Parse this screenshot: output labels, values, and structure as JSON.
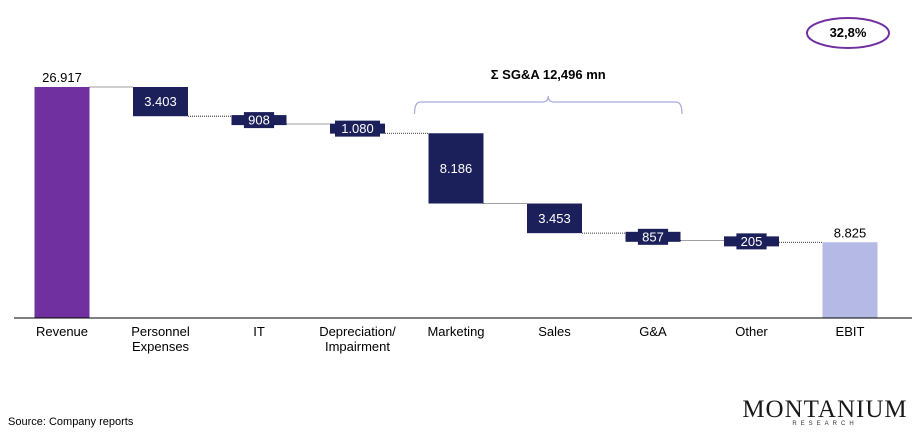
{
  "chart_data": {
    "type": "waterfall",
    "categories": [
      "Revenue",
      "Personnel\nExpenses",
      "IT",
      "Depreciation/\nImpairment",
      "Marketing",
      "Sales",
      "G&A",
      "Other",
      "EBIT"
    ],
    "value_labels": [
      "26.917",
      "3.403",
      "908",
      "1.080",
      "8.186",
      "3.453",
      "857",
      "205",
      "8.825"
    ],
    "values": [
      26917,
      -3403,
      -908,
      -1080,
      -8186,
      -3453,
      -857,
      -205,
      8825
    ],
    "kinds": [
      "total",
      "delta",
      "delta",
      "delta",
      "delta",
      "delta",
      "delta",
      "delta",
      "total"
    ],
    "ylim": [
      0,
      26917
    ],
    "bracket": {
      "label": "Σ SG&A 12,496 mn",
      "from_category": "Marketing",
      "to_category": "Other"
    },
    "callout": "32,8%",
    "colors": {
      "revenue": "#7030A0",
      "decrease": "#1B1F5A",
      "ebit": "#B4B9E6",
      "bracket": "#A9A9DD",
      "callout": "#7030A0"
    }
  },
  "source": "Source: Company reports",
  "logo": {
    "name": "MONTANIUM",
    "sub": "RESEARCH"
  }
}
